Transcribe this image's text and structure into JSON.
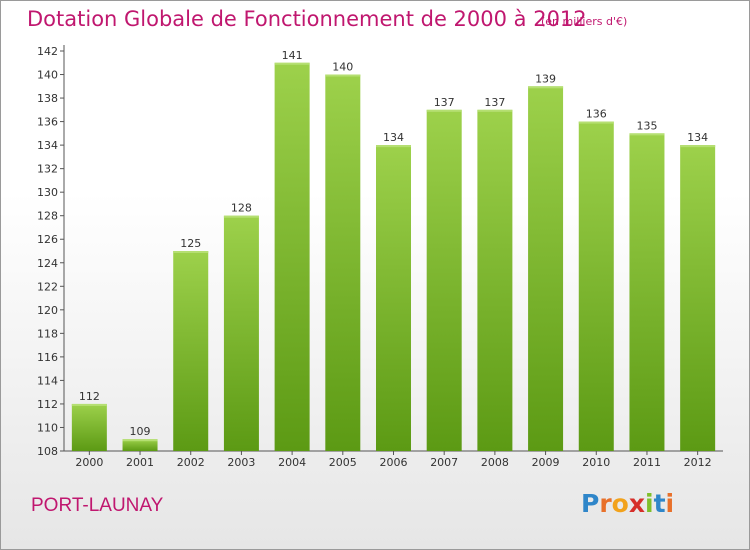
{
  "title": "Dotation Globale de Fonctionnement de 2000 à 2012",
  "subtitle": "(en milliers d'€)",
  "commune": "PORT-LAUNAY",
  "logo": {
    "text": "Proxiti",
    "colors": [
      "#2f86c9",
      "#e8702a",
      "#f2a21b",
      "#d62f2a",
      "#7fbf2a",
      "#2f86c9",
      "#e8702a"
    ]
  },
  "colors": {
    "title": "#c0176f",
    "bar_light": "#9dd14b",
    "bar_dark": "#5c9a14",
    "axis": "#555555"
  },
  "chart_data": {
    "type": "bar",
    "categories": [
      "2000",
      "2001",
      "2002",
      "2003",
      "2004",
      "2005",
      "2006",
      "2007",
      "2008",
      "2009",
      "2010",
      "2011",
      "2012"
    ],
    "values": [
      112,
      109,
      125,
      128,
      141,
      140,
      134,
      137,
      137,
      139,
      136,
      135,
      134
    ],
    "yticks": [
      108,
      110,
      112,
      114,
      116,
      118,
      120,
      122,
      124,
      126,
      128,
      130,
      132,
      134,
      136,
      138,
      140,
      142
    ],
    "ylim": [
      108,
      142
    ],
    "grid": false
  }
}
